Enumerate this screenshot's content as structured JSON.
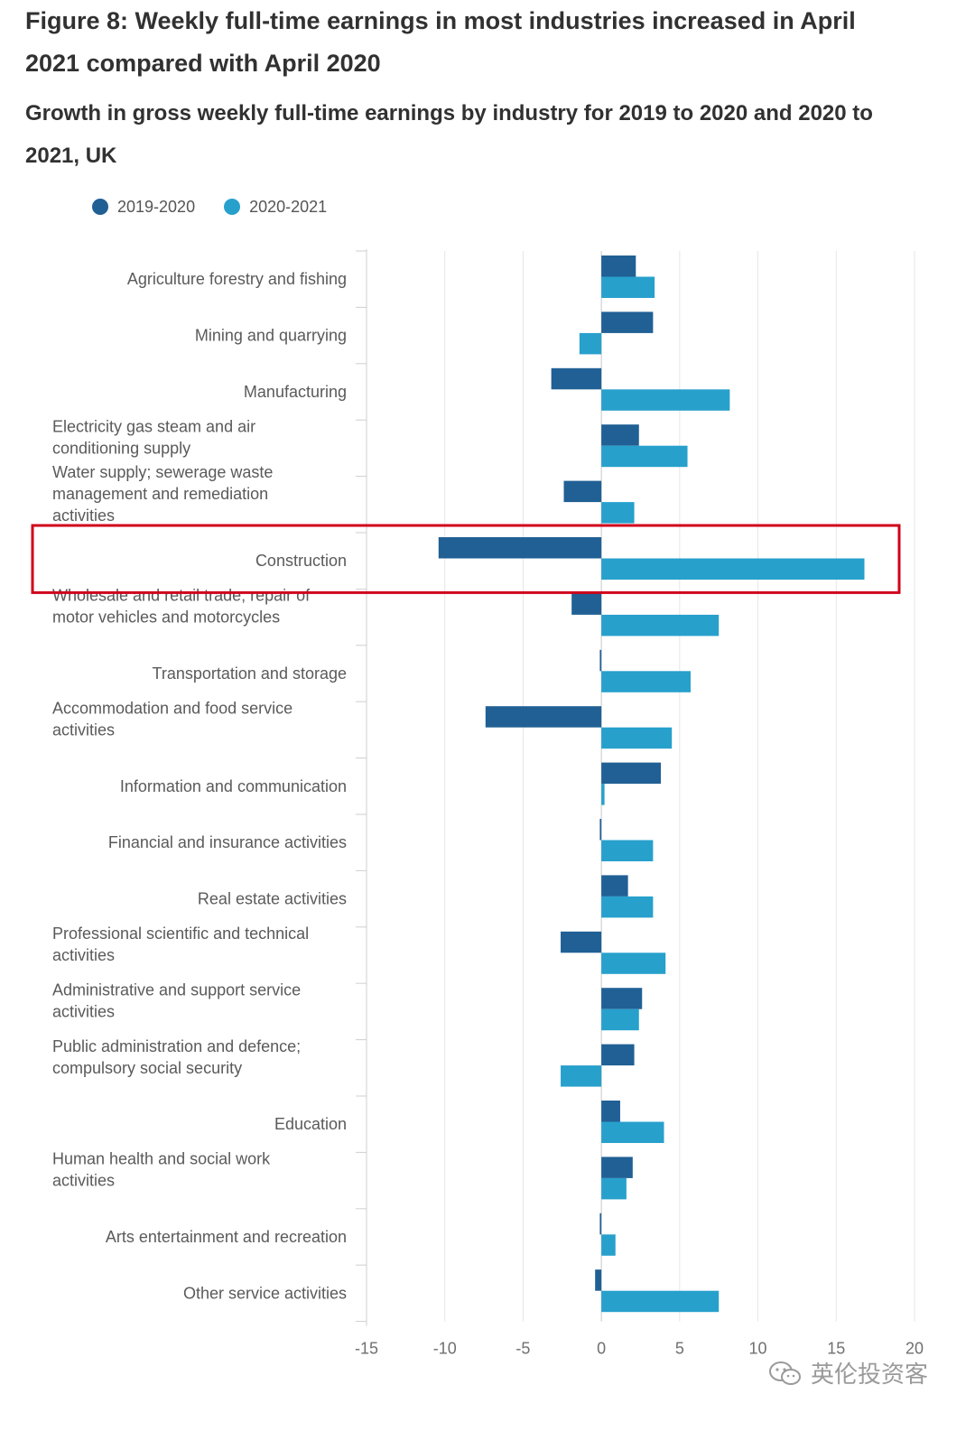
{
  "title": "Figure 8: Weekly full-time earnings in most industries increased in April 2021 compared with April 2020",
  "subtitle": "Growth in gross weekly full-time earnings by industry for 2019 to 2020 and 2020 to 2021, UK",
  "legend": [
    {
      "name": "2019-2020",
      "color": "#206095"
    },
    {
      "name": "2020-2021",
      "color": "#27a0cc"
    }
  ],
  "watermark": "英伦投资客",
  "highlight": {
    "category": "Construction",
    "color": "#d0021b"
  },
  "chart_data": {
    "type": "bar",
    "orientation": "horizontal",
    "title": "Growth in gross weekly full-time earnings by industry for 2019 to 2020 and 2020 to 2021, UK",
    "xlabel": "",
    "ylabel": "",
    "xlim": [
      -15,
      20
    ],
    "xticks": [
      -15,
      -10,
      -5,
      0,
      5,
      10,
      15,
      20
    ],
    "grid": true,
    "legend_position": "top-left",
    "categories": [
      "Agriculture forestry and fishing",
      "Mining and quarrying",
      "Manufacturing",
      "Electricity gas steam and air conditioning supply",
      "Water supply; sewerage waste management and remediation activities",
      "Construction",
      "Wholesale and retail trade; repair of motor vehicles and motorcycles",
      "Transportation and storage",
      "Accommodation and food service activities",
      "Information and communication",
      "Financial and insurance activities",
      "Real estate activities",
      "Professional scientific and technical activities",
      "Administrative and support service activities",
      "Public administration and defence; compulsory social security",
      "Education",
      "Human health and social work activities",
      "Arts entertainment and recreation",
      "Other service activities"
    ],
    "series": [
      {
        "name": "2019-2020",
        "color": "#206095",
        "values": [
          2.2,
          3.3,
          -3.2,
          2.4,
          -2.4,
          -10.4,
          -1.9,
          -0.1,
          -7.4,
          3.8,
          -0.1,
          1.7,
          -2.6,
          2.6,
          2.1,
          1.2,
          2.0,
          -0.1,
          -0.4
        ]
      },
      {
        "name": "2020-2021",
        "color": "#27a0cc",
        "values": [
          3.4,
          -1.4,
          8.2,
          5.5,
          2.1,
          16.8,
          7.5,
          5.7,
          4.5,
          0.2,
          3.3,
          3.3,
          4.1,
          2.4,
          -2.6,
          4.0,
          1.6,
          0.9,
          7.5
        ]
      }
    ]
  }
}
